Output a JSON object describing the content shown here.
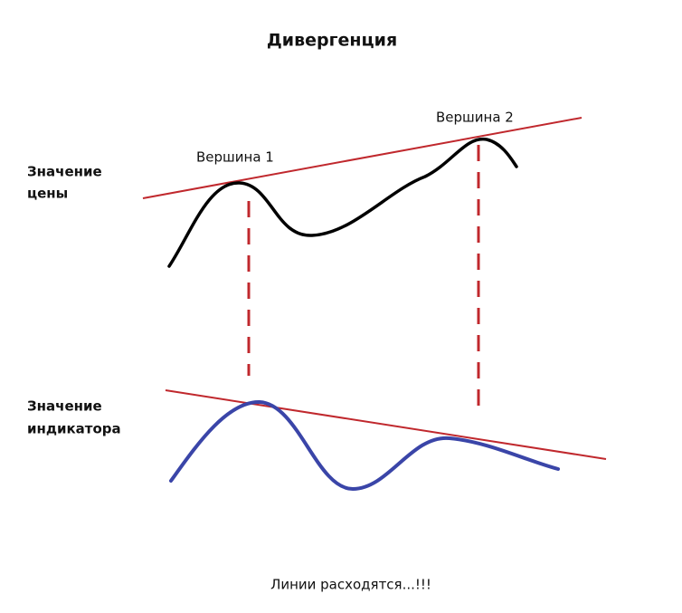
{
  "title": "Дивергенция",
  "price_label": {
    "lines": [
      "Значение",
      "цены"
    ]
  },
  "indicator_label": {
    "lines": [
      "Значение",
      "индикатора"
    ]
  },
  "peaks": [
    "Вершина 1",
    "Вершина 2"
  ],
  "footer": "Линии расходятся...!!!"
}
